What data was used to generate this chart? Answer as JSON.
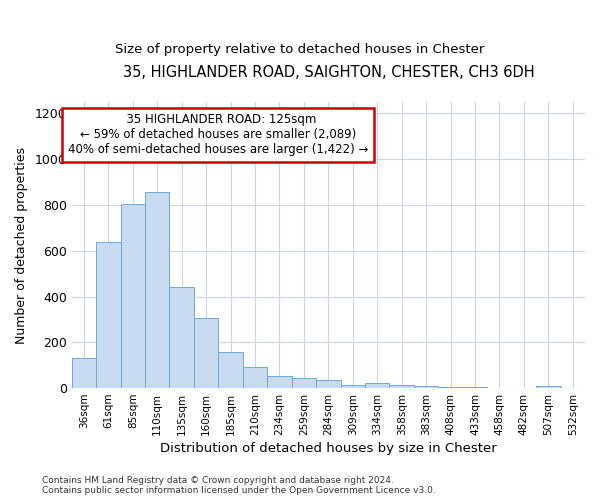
{
  "title_line1": "35, HIGHLANDER ROAD, SAIGHTON, CHESTER, CH3 6DH",
  "title_line2": "Size of property relative to detached houses in Chester",
  "xlabel": "Distribution of detached houses by size in Chester",
  "ylabel": "Number of detached properties",
  "bar_color": "#c8daf0",
  "bar_edge_color": "#6aaad4",
  "categories": [
    "36sqm",
    "61sqm",
    "85sqm",
    "110sqm",
    "135sqm",
    "160sqm",
    "185sqm",
    "210sqm",
    "234sqm",
    "259sqm",
    "284sqm",
    "309sqm",
    "334sqm",
    "358sqm",
    "383sqm",
    "408sqm",
    "433sqm",
    "458sqm",
    "482sqm",
    "507sqm",
    "532sqm"
  ],
  "values": [
    130,
    640,
    805,
    855,
    440,
    305,
    158,
    90,
    52,
    43,
    35,
    14,
    22,
    14,
    7,
    5,
    3,
    2,
    1,
    8,
    1
  ],
  "vline_x": 3.5,
  "ylim": [
    0,
    1250
  ],
  "yticks": [
    0,
    200,
    400,
    600,
    800,
    1000,
    1200
  ],
  "annotation_text": "  35 HIGHLANDER ROAD: 125sqm\n← 59% of detached houses are smaller (2,089)\n40% of semi-detached houses are larger (1,422) →",
  "annotation_box_color": "#ffffff",
  "annotation_box_edge_color": "#cc0000",
  "footer_text": "Contains HM Land Registry data © Crown copyright and database right 2024.\nContains public sector information licensed under the Open Government Licence v3.0.",
  "background_color": "#ffffff",
  "grid_color": "#ccd5e5"
}
